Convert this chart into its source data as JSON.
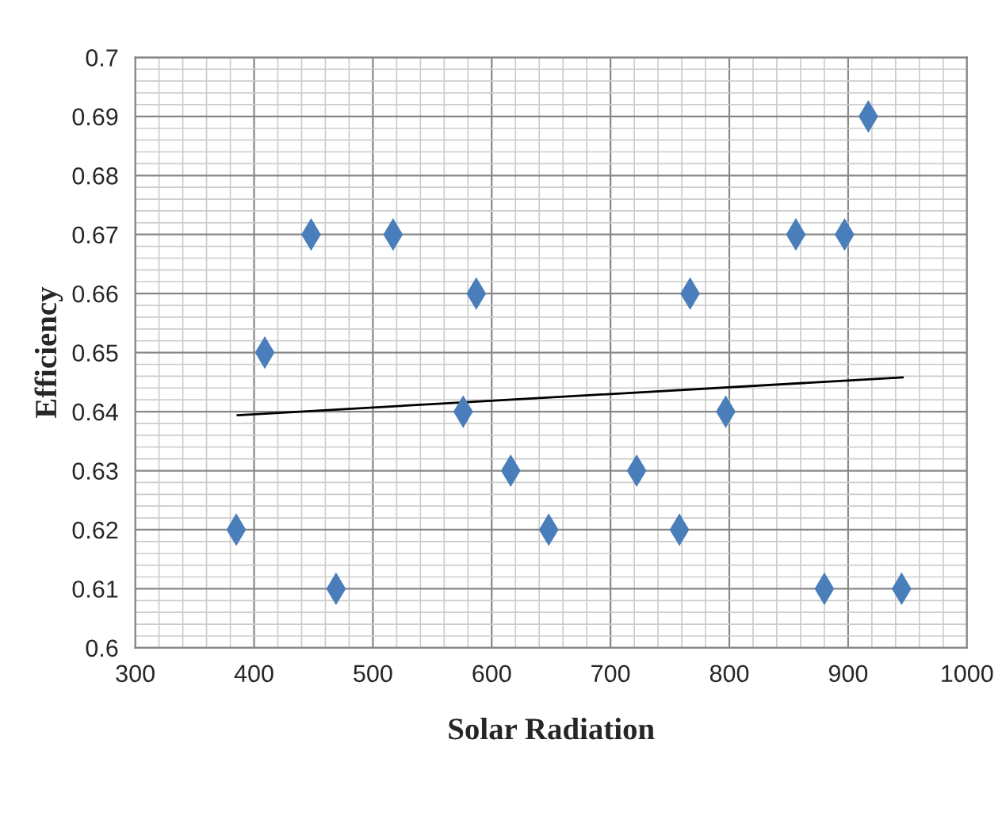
{
  "chart_data": {
    "type": "scatter",
    "xlabel": "Solar Radiation",
    "ylabel": "Efficiency",
    "series": [
      {
        "color": "#4a7ebb",
        "marker": "diamond",
        "x": [
          385,
          409,
          448,
          469,
          517,
          576,
          587,
          616,
          648,
          722,
          758,
          767,
          797,
          856,
          880,
          897,
          917,
          945
        ],
        "values": [
          0.62,
          0.65,
          0.67,
          0.61,
          0.67,
          0.64,
          0.66,
          0.63,
          0.62,
          0.63,
          0.62,
          0.66,
          0.64,
          0.67,
          0.61,
          0.67,
          0.69,
          0.61
        ]
      },
      {
        "type": "line",
        "color": "#000000",
        "marker": "none",
        "x": [
          386,
          946
        ],
        "values": [
          0.6394,
          0.6458
        ]
      }
    ],
    "xlim": [
      300,
      1000
    ],
    "xticks": [
      300,
      400,
      500,
      600,
      700,
      800,
      900,
      1000
    ],
    "ylim": [
      0.6,
      0.7
    ],
    "yticks": [
      0.6,
      0.61,
      0.62,
      0.63,
      0.64,
      0.65,
      0.66,
      0.67,
      0.68,
      0.69,
      0.7
    ],
    "grid": true,
    "legend": false
  }
}
